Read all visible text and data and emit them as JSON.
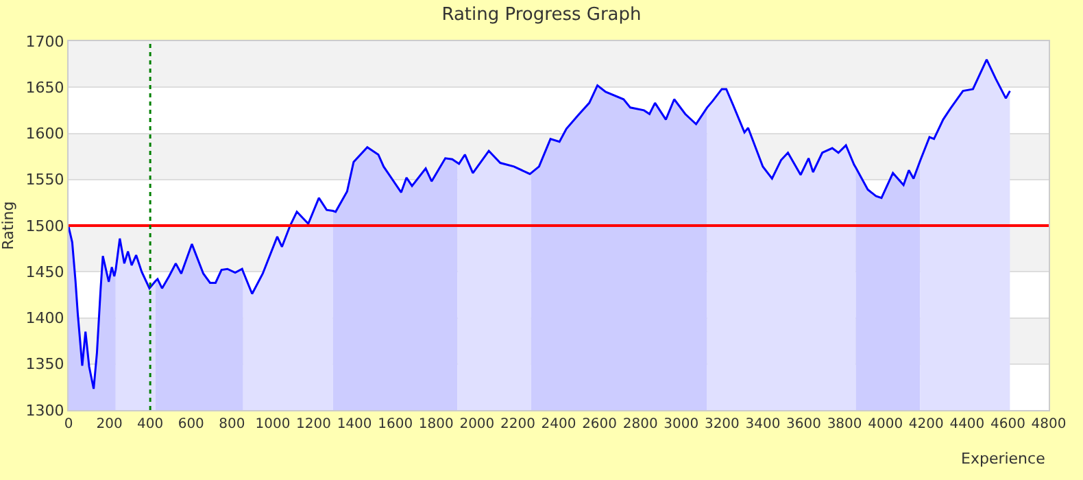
{
  "chart_data": {
    "type": "line",
    "title": "Rating Progress Graph",
    "xlabel": "Experience",
    "ylabel": "Rating",
    "xlim": [
      0,
      4800
    ],
    "xticks": [
      0,
      200,
      400,
      600,
      800,
      1000,
      1200,
      1400,
      1600,
      1800,
      2000,
      2200,
      2400,
      2600,
      2800,
      3000,
      3200,
      3400,
      3600,
      3800,
      4000,
      4200,
      4400,
      4600,
      4800
    ],
    "ylim": [
      1300,
      1700
    ],
    "yticks": [
      1300,
      1350,
      1400,
      1450,
      1500,
      1550,
      1600,
      1650,
      1700
    ],
    "grid": "y",
    "marker": "none",
    "line_style": "solid",
    "series": [
      {
        "type": "area",
        "color": "#ccccff",
        "x": [
          0,
          18,
          34,
          45,
          67,
          83,
          101,
          123,
          139,
          157,
          168,
          197,
          212,
          224,
          231
        ],
        "values": [
          1499,
          1482,
          1440,
          1405,
          1348,
          1385,
          1347,
          1323,
          1362,
          1431,
          1467,
          1439,
          1455,
          1445,
          1452
        ]
      },
      {
        "type": "area",
        "color": "#e0e0ff",
        "x": [
          231,
          251,
          273,
          291,
          309,
          331,
          358,
          396,
          426
        ],
        "values": [
          1452,
          1486,
          1459,
          1472,
          1457,
          1468,
          1450,
          1432,
          1440
        ]
      },
      {
        "type": "area",
        "color": "#ccccff",
        "x": [
          426,
          436,
          458,
          492,
          525,
          552,
          604,
          660,
          693,
          720,
          749,
          778,
          816,
          850,
          855
        ],
        "values": [
          1440,
          1442,
          1432,
          1445,
          1459,
          1448,
          1480,
          1448,
          1438,
          1438,
          1452,
          1453,
          1449,
          1453,
          1450
        ]
      },
      {
        "type": "area",
        "color": "#e0e0ff",
        "x": [
          855,
          899,
          951,
          1022,
          1045,
          1085,
          1118,
          1174,
          1226,
          1264,
          1295
        ],
        "values": [
          1450,
          1426,
          1448,
          1488,
          1477,
          1500,
          1515,
          1502,
          1530,
          1517,
          1516
        ]
      },
      {
        "type": "area",
        "color": "#ccccff",
        "x": [
          1295,
          1308,
          1364,
          1396,
          1463,
          1517,
          1543,
          1629,
          1655,
          1682,
          1749,
          1778,
          1845,
          1879,
          1905
        ],
        "values": [
          1516,
          1515,
          1537,
          1569,
          1585,
          1577,
          1564,
          1536,
          1552,
          1543,
          1562,
          1548,
          1573,
          1572,
          1568
        ]
      },
      {
        "type": "area",
        "color": "#e0e0ff",
        "x": [
          1905,
          1912,
          1941,
          1980,
          2058,
          2114,
          2181,
          2259,
          2265
        ],
        "values": [
          1568,
          1567,
          1577,
          1557,
          1581,
          1568,
          1564,
          1556,
          1557
        ]
      },
      {
        "type": "area",
        "color": "#ccccff",
        "x": [
          2265,
          2304,
          2360,
          2404,
          2438,
          2497,
          2550,
          2590,
          2630,
          2718,
          2751,
          2818,
          2845,
          2872,
          2925,
          2966,
          3020,
          3073,
          3127
        ],
        "values": [
          1557,
          1564,
          1594,
          1591,
          1605,
          1620,
          1633,
          1652,
          1645,
          1637,
          1628,
          1625,
          1621,
          1633,
          1615,
          1637,
          1621,
          1610,
          1628
        ]
      },
      {
        "type": "area",
        "color": "#e0e0ff",
        "x": [
          3127,
          3154,
          3199,
          3221,
          3254,
          3310,
          3328,
          3400,
          3445,
          3489,
          3523,
          3585,
          3624,
          3646,
          3691,
          3740,
          3770,
          3807,
          3847,
          3855
        ],
        "values": [
          1628,
          1635,
          1648,
          1648,
          1631,
          1601,
          1606,
          1564,
          1551,
          1571,
          1579,
          1555,
          1573,
          1558,
          1579,
          1584,
          1579,
          1587,
          1566,
          1563
        ]
      },
      {
        "type": "area",
        "color": "#ccccff",
        "x": [
          3855,
          3914,
          3954,
          3981,
          4037,
          4089,
          4115,
          4138,
          4170
        ],
        "values": [
          1563,
          1539,
          1532,
          1530,
          1557,
          1544,
          1560,
          1551,
          1570
        ]
      },
      {
        "type": "area",
        "color": "#e0e0ff",
        "x": [
          4170,
          4216,
          4238,
          4283,
          4319,
          4380,
          4429,
          4496,
          4541,
          4590,
          4610
        ],
        "values": [
          1570,
          1596,
          1594,
          1615,
          1627,
          1646,
          1648,
          1680,
          1659,
          1638,
          1646
        ]
      },
      {
        "color": "#0000ff",
        "x": [
          0,
          18,
          34,
          45,
          67,
          83,
          101,
          123,
          139,
          157,
          168,
          197,
          212,
          224,
          231,
          251,
          273,
          291,
          309,
          331,
          358,
          396,
          426,
          436,
          458,
          492,
          525,
          552,
          604,
          660,
          693,
          720,
          749,
          778,
          816,
          850,
          855,
          899,
          951,
          1022,
          1045,
          1085,
          1118,
          1174,
          1226,
          1264,
          1295,
          1308,
          1364,
          1396,
          1463,
          1517,
          1543,
          1629,
          1655,
          1682,
          1749,
          1778,
          1845,
          1879,
          1905,
          1912,
          1941,
          1980,
          2058,
          2114,
          2181,
          2259,
          2265,
          2304,
          2360,
          2404,
          2438,
          2497,
          2550,
          2590,
          2630,
          2718,
          2751,
          2818,
          2845,
          2872,
          2925,
          2966,
          3020,
          3073,
          3127,
          3154,
          3199,
          3221,
          3254,
          3310,
          3328,
          3400,
          3445,
          3489,
          3523,
          3585,
          3624,
          3646,
          3691,
          3740,
          3770,
          3807,
          3847,
          3855,
          3914,
          3954,
          3981,
          4037,
          4089,
          4115,
          4138,
          4170,
          4216,
          4238,
          4283,
          4319,
          4380,
          4429,
          4496,
          4541,
          4590,
          4610
        ],
        "values": [
          1499,
          1482,
          1440,
          1405,
          1348,
          1385,
          1347,
          1323,
          1362,
          1431,
          1467,
          1439,
          1455,
          1445,
          1452,
          1486,
          1459,
          1472,
          1457,
          1468,
          1450,
          1432,
          1440,
          1442,
          1432,
          1445,
          1459,
          1448,
          1480,
          1448,
          1438,
          1438,
          1452,
          1453,
          1449,
          1453,
          1450,
          1426,
          1448,
          1488,
          1477,
          1500,
          1515,
          1502,
          1530,
          1517,
          1516,
          1515,
          1537,
          1569,
          1585,
          1577,
          1564,
          1536,
          1552,
          1543,
          1562,
          1548,
          1573,
          1572,
          1568,
          1567,
          1577,
          1557,
          1581,
          1568,
          1564,
          1556,
          1557,
          1564,
          1594,
          1591,
          1605,
          1620,
          1633,
          1652,
          1645,
          1637,
          1628,
          1625,
          1621,
          1633,
          1615,
          1637,
          1621,
          1610,
          1628,
          1635,
          1648,
          1648,
          1631,
          1601,
          1606,
          1564,
          1551,
          1571,
          1579,
          1555,
          1573,
          1558,
          1579,
          1584,
          1579,
          1587,
          1566,
          1563,
          1539,
          1532,
          1530,
          1557,
          1544,
          1560,
          1551,
          1570,
          1596,
          1594,
          1615,
          1627,
          1646,
          1648,
          1680,
          1659,
          1638,
          1646
        ]
      }
    ],
    "bands": [
      {
        "axis": "y",
        "from": 1350,
        "to": 1400,
        "color": "#f2f2f2"
      },
      {
        "axis": "y",
        "from": 1450,
        "to": 1500,
        "color": "#f2f2f2"
      },
      {
        "axis": "y",
        "from": 1550,
        "to": 1600,
        "color": "#f2f2f2"
      },
      {
        "axis": "y",
        "from": 1650,
        "to": 1700,
        "color": "#f2f2f2"
      }
    ],
    "ref_lines": [
      {
        "axis": "y",
        "value": 1500,
        "color": "#ff0000",
        "line_style": "solid"
      },
      {
        "axis": "x",
        "value": 400,
        "color": "#008000",
        "line_style": "dotted"
      }
    ]
  }
}
